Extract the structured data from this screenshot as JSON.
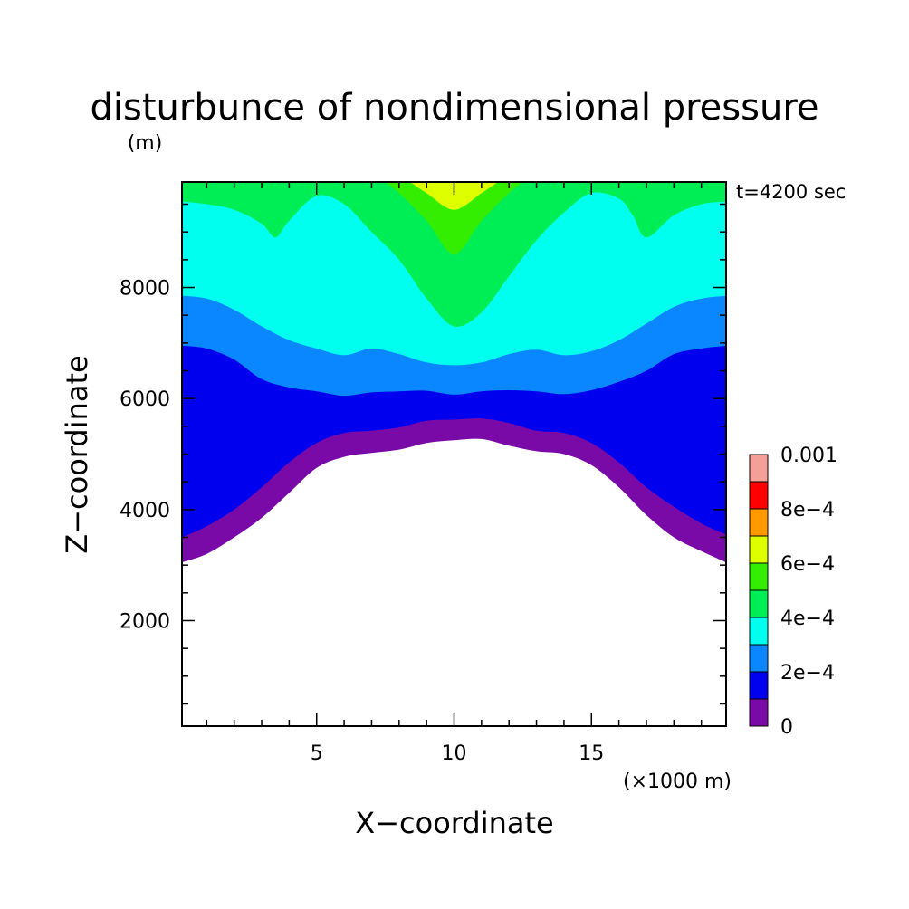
{
  "chart_data": {
    "type": "heatmap",
    "title": "disturbunce of nondimensional pressure",
    "y_unit": "(m)",
    "x_unit": "(×1000 m)",
    "time_label": "t=4200 sec",
    "xlabel": "X−coordinate",
    "ylabel": "Z−coordinate",
    "xlim": [
      0.1,
      19.9
    ],
    "ylim": [
      100,
      9900
    ],
    "x_ticks": [
      "5",
      "10",
      "15"
    ],
    "x_tick_values": [
      5,
      10,
      15
    ],
    "y_ticks": [
      "2000",
      "4000",
      "6000",
      "8000"
    ],
    "y_tick_values": [
      2000,
      4000,
      6000,
      8000
    ],
    "grid": false,
    "legend": {
      "placement": "right",
      "labels": [
        "0",
        "2e−4",
        "4e−4",
        "6e−4",
        "8e−4",
        "0.001"
      ],
      "label_values": [
        0,
        0.0002,
        0.0004,
        0.0006,
        0.0008,
        0.001
      ],
      "levels": [
        0,
        0.0001,
        0.0002,
        0.0003,
        0.0004,
        0.0005,
        0.0006,
        0.0007,
        0.0008,
        0.0009,
        0.001
      ],
      "colors": [
        "#7a0aa8",
        "#0000ee",
        "#0a87ff",
        "#00ffee",
        "#00ee55",
        "#33ee00",
        "#ddff00",
        "#ff9900",
        "#ff0000",
        "#f4a098"
      ]
    },
    "contour_boundaries": [
      {
        "level": 0.0,
        "x": [
          0.1,
          1,
          2,
          3,
          4,
          5,
          6,
          7,
          8,
          9,
          10,
          11,
          12,
          13,
          14,
          15,
          16,
          17,
          18,
          19,
          19.9
        ],
        "z": [
          3050,
          3200,
          3500,
          3850,
          4300,
          4750,
          4950,
          5020,
          5080,
          5200,
          5250,
          5270,
          5150,
          5050,
          5000,
          4800,
          4400,
          3900,
          3500,
          3250,
          3050
        ]
      },
      {
        "level": 0.0001,
        "x": [
          0.1,
          1,
          2,
          3,
          4,
          5,
          6,
          7,
          8,
          9,
          10,
          11,
          12,
          13,
          14,
          15,
          16,
          17,
          18,
          19,
          19.9
        ],
        "z": [
          3500,
          3700,
          4000,
          4400,
          4850,
          5200,
          5380,
          5420,
          5480,
          5600,
          5620,
          5640,
          5560,
          5420,
          5380,
          5200,
          4850,
          4400,
          4050,
          3750,
          3550
        ]
      },
      {
        "level": 0.0002,
        "x": [
          0.1,
          1,
          2,
          3,
          4,
          5,
          6,
          7,
          8,
          9,
          10,
          11,
          12,
          13,
          14,
          15,
          16,
          17,
          18,
          19,
          19.9
        ],
        "z": [
          6950,
          6900,
          6700,
          6350,
          6200,
          6130,
          6050,
          6110,
          6130,
          6140,
          6070,
          6130,
          6150,
          6130,
          6080,
          6150,
          6300,
          6500,
          6800,
          6900,
          6950
        ]
      },
      {
        "level": 0.0003,
        "x": [
          0.1,
          1,
          2,
          3,
          4,
          5,
          6,
          7,
          8,
          9,
          10,
          11,
          12,
          13,
          14,
          15,
          16,
          17,
          18,
          19,
          19.9
        ],
        "z": [
          7850,
          7800,
          7600,
          7300,
          7050,
          6900,
          6780,
          6900,
          6800,
          6650,
          6600,
          6650,
          6800,
          6880,
          6780,
          6850,
          7050,
          7350,
          7650,
          7800,
          7850
        ]
      },
      {
        "level": 0.0004,
        "x": [
          0.1,
          1,
          2,
          3,
          3.5,
          4,
          5,
          6,
          7,
          8,
          9,
          10,
          11,
          12,
          13,
          14,
          15,
          16,
          16.5,
          17,
          18,
          19,
          19.9
        ],
        "z": [
          9550,
          9500,
          9400,
          9150,
          8900,
          9200,
          9650,
          9500,
          9000,
          8500,
          7800,
          7300,
          7550,
          8200,
          8850,
          9350,
          9700,
          9600,
          9300,
          8900,
          9300,
          9500,
          9550
        ]
      },
      {
        "level": 0.0005,
        "x": [
          7.5,
          8,
          9,
          10,
          11,
          12,
          12.5
        ],
        "z": [
          9900,
          9700,
          9200,
          8600,
          9200,
          9700,
          9900
        ]
      },
      {
        "level": 0.0006,
        "x": [
          8.4,
          9,
          10,
          11,
          11.6
        ],
        "z": [
          9900,
          9700,
          9400,
          9700,
          9900
        ]
      }
    ]
  }
}
